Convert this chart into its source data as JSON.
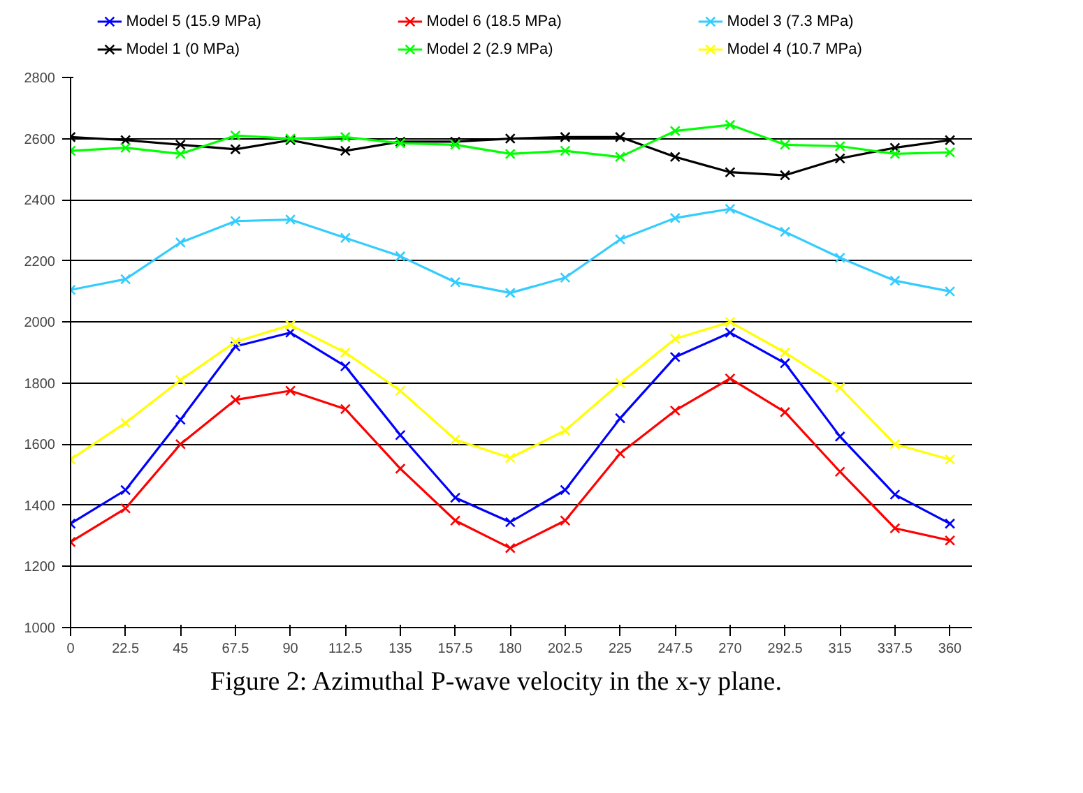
{
  "chart_data": {
    "type": "line",
    "x": [
      0,
      22.5,
      45,
      67.5,
      90,
      112.5,
      135,
      157.5,
      180,
      202.5,
      225,
      247.5,
      270,
      292.5,
      315,
      337.5,
      360
    ],
    "series": [
      {
        "name": "Model 5 (15.9 MPa)",
        "color": "#0000ff",
        "values": [
          1340,
          1450,
          1680,
          1920,
          1965,
          1855,
          1630,
          1425,
          1345,
          1450,
          1685,
          1885,
          1965,
          1865,
          1625,
          1435,
          1340
        ]
      },
      {
        "name": "Model 6 (18.5 MPa)",
        "color": "#ff0000",
        "values": [
          1280,
          1390,
          1600,
          1745,
          1775,
          1715,
          1520,
          1350,
          1260,
          1350,
          1570,
          1710,
          1815,
          1705,
          1510,
          1325,
          1285
        ]
      },
      {
        "name": "Model 3 (7.3 MPa)",
        "color": "#33ccff",
        "values": [
          2105,
          2140,
          2260,
          2330,
          2335,
          2275,
          2215,
          2130,
          2095,
          2145,
          2270,
          2340,
          2370,
          2295,
          2210,
          2135,
          2100
        ]
      },
      {
        "name": "Model 1 (0 MPa)",
        "color": "#000000",
        "values": [
          2605,
          2595,
          2580,
          2565,
          2595,
          2560,
          2590,
          2590,
          2600,
          2605,
          2605,
          2540,
          2490,
          2480,
          2535,
          2570,
          2595
        ]
      },
      {
        "name": "Model 2 (2.9 MPa)",
        "color": "#00ff00",
        "values": [
          2560,
          2570,
          2550,
          2610,
          2600,
          2605,
          2585,
          2580,
          2550,
          2560,
          2540,
          2625,
          2645,
          2580,
          2575,
          2550,
          2555
        ]
      },
      {
        "name": "Model 4 (10.7 MPa)",
        "color": "#ffff00",
        "values": [
          1550,
          1670,
          1810,
          1935,
          1990,
          1900,
          1775,
          1615,
          1555,
          1645,
          1800,
          1945,
          2000,
          1900,
          1785,
          1600,
          1550
        ]
      }
    ],
    "xlim": [
      0,
      369
    ],
    "xticks": [
      0,
      22.5,
      45,
      67.5,
      90,
      112.5,
      135,
      157.5,
      180,
      202.5,
      225,
      247.5,
      270,
      292.5,
      315,
      337.5,
      360
    ],
    "ylim": [
      1000,
      2800
    ],
    "yticks": [
      1000,
      1200,
      1400,
      1600,
      1800,
      2000,
      2200,
      2400,
      2600,
      2800
    ],
    "grid": "y",
    "legend": "top",
    "marker": "cross",
    "line_style": "solid",
    "annotations": [
      "Figure 2:  Azimuthal P-wave velocity in the x-y  plane."
    ]
  }
}
